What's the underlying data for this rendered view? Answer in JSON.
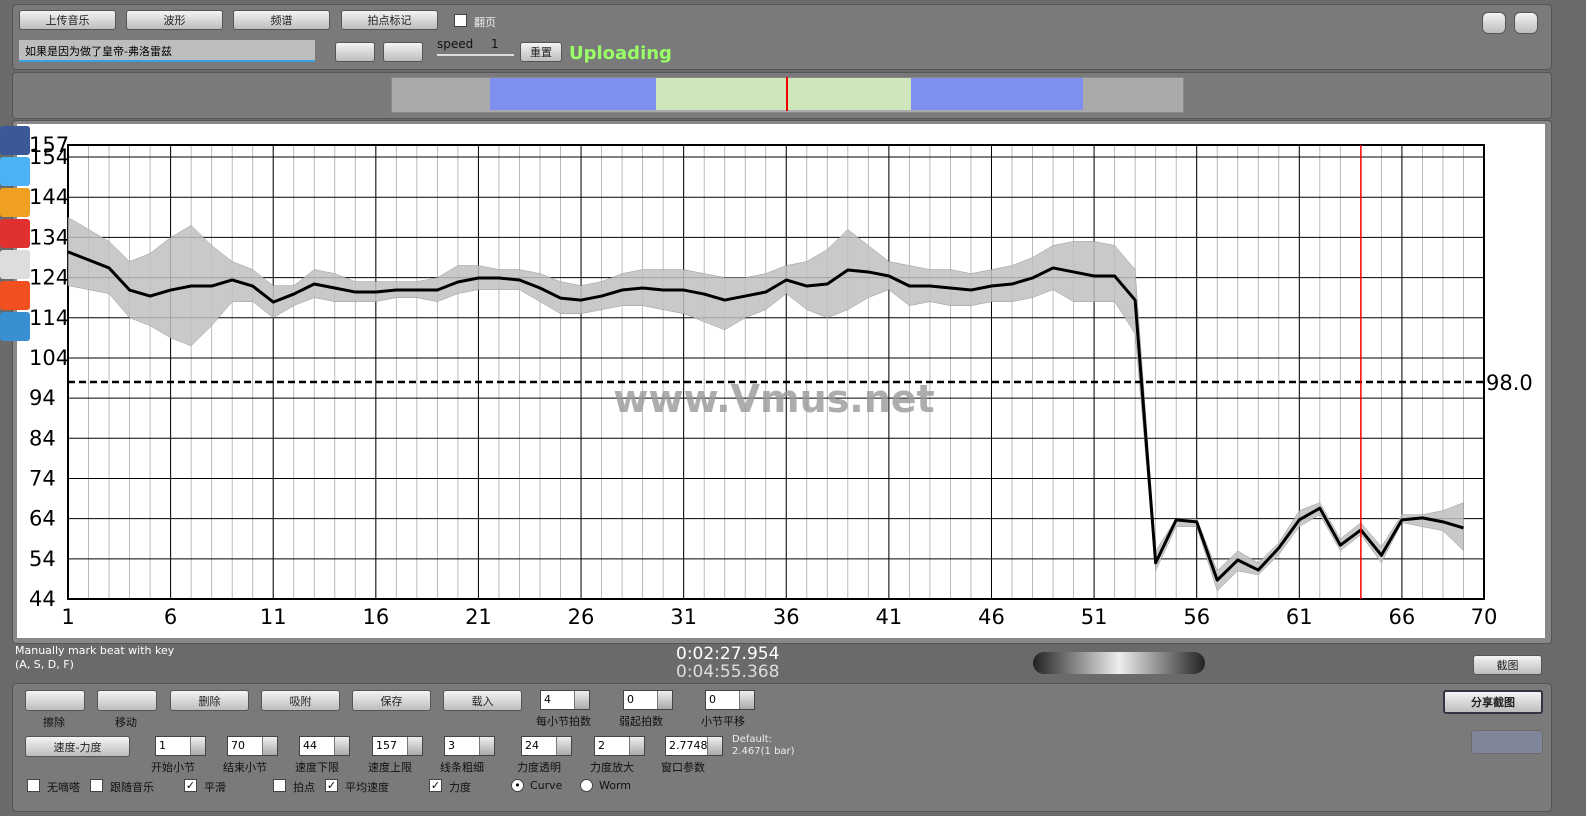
{
  "toolbar": {
    "buttons": [
      "上传音乐",
      "波形",
      "频谱",
      "拍点标记"
    ],
    "page_turn": {
      "label": "翻页",
      "checked": false
    },
    "song": "如果是因为做了皇帝-弗洛雷兹",
    "speed_label": "speed",
    "speed_value": "1",
    "reset": "重置",
    "status": "Uploading"
  },
  "chart_data": {
    "type": "line",
    "annotation": "www.Vmus.net",
    "x": [
      1,
      2,
      3,
      4,
      5,
      6,
      7,
      8,
      9,
      10,
      11,
      12,
      13,
      14,
      15,
      16,
      17,
      18,
      19,
      20,
      21,
      22,
      23,
      24,
      25,
      26,
      27,
      28,
      29,
      30,
      31,
      32,
      33,
      34,
      35,
      36,
      37,
      38,
      39,
      40,
      41,
      42,
      43,
      44,
      45,
      46,
      47,
      48,
      49,
      50,
      51,
      52,
      53,
      54,
      55,
      56,
      57,
      58,
      59,
      60,
      61,
      62,
      63,
      64,
      65,
      66,
      67,
      68,
      69
    ],
    "series": [
      {
        "color": "#000000",
        "band_color": "#c0c0c0",
        "values": [
          130.4,
          128.4,
          126.4,
          120.9,
          119.4,
          120.9,
          121.9,
          121.9,
          123.4,
          121.9,
          117.9,
          119.9,
          122.4,
          121.4,
          120.4,
          120.4,
          120.9,
          120.9,
          120.9,
          122.9,
          123.9,
          123.9,
          123.4,
          121.4,
          118.9,
          118.4,
          119.4,
          120.9,
          121.4,
          120.9,
          120.9,
          119.9,
          118.4,
          119.4,
          120.4,
          123.4,
          121.9,
          122.4,
          125.9,
          125.4,
          124.4,
          121.9,
          121.9,
          121.4,
          120.9,
          121.9,
          122.4,
          123.9,
          126.4,
          125.4,
          124.4,
          124.4,
          118.4,
          53,
          63.7,
          63.2,
          48.7,
          53.7,
          51.2,
          56.7,
          63.7,
          66.6,
          57.4,
          61.2,
          54.9,
          63.7,
          64.2,
          63.2,
          61.7
        ],
        "upper": [
          139,
          136,
          133,
          128,
          130,
          134,
          137,
          132,
          128,
          126,
          122,
          122,
          126,
          125,
          123,
          123,
          123,
          123,
          124,
          127,
          127,
          126,
          126,
          125,
          123,
          122,
          123,
          125,
          126,
          126,
          126,
          125,
          124,
          124,
          125,
          127,
          128,
          131,
          136,
          132,
          128,
          127,
          126,
          126,
          125,
          126,
          127,
          129,
          132,
          133,
          133,
          132,
          126,
          56,
          64,
          64,
          51,
          56,
          53,
          58,
          66,
          68,
          59,
          63,
          57,
          65,
          65,
          66,
          68
        ],
        "lower": [
          122,
          121,
          120,
          114,
          112,
          109,
          107,
          112,
          118,
          118,
          114,
          117,
          119,
          118,
          118,
          118,
          119,
          119,
          118,
          120,
          121,
          121,
          121,
          118,
          115,
          115,
          116,
          117,
          117,
          116,
          115,
          113,
          111,
          114,
          116,
          120,
          116,
          114,
          116,
          119,
          121,
          117,
          118,
          117,
          117,
          118,
          118,
          119,
          121,
          118,
          118,
          118,
          110,
          51,
          62,
          62,
          46,
          51,
          50,
          55,
          62,
          65,
          56,
          60,
          53,
          63,
          62,
          61,
          56
        ]
      }
    ],
    "xlim": [
      1,
      70
    ],
    "xticks": [
      1,
      6,
      11,
      16,
      21,
      26,
      31,
      36,
      41,
      46,
      51,
      56,
      61,
      66,
      70
    ],
    "ylim": [
      44,
      157
    ],
    "yticks": [
      44,
      54,
      64,
      74,
      84,
      94,
      104,
      114,
      124,
      134,
      144,
      154,
      157
    ],
    "reference_line": {
      "value": 98,
      "label": "98.0"
    },
    "cursor_x": 64,
    "cursor_color": "#ff0000",
    "grid": true
  },
  "status_bar": {
    "hint": [
      "Manually mark beat with key",
      "(A, S, D, F)"
    ],
    "time_current": "0:02:27.954",
    "time_total": "0:04:55.368",
    "screenshot": "截图"
  },
  "controls": {
    "tools": [
      "擦除",
      "移动"
    ],
    "buttons": [
      "删除",
      "吸附",
      "保存",
      "载入"
    ],
    "spinners_top": [
      {
        "value": "4",
        "label": "每小节拍数"
      },
      {
        "value": "0",
        "label": "弱起拍数"
      },
      {
        "value": "0",
        "label": "小节平移"
      }
    ],
    "share": "分享截图",
    "mode": "速度-力度",
    "spinners": [
      {
        "value": "1",
        "label": "开始小节"
      },
      {
        "value": "70",
        "label": "结束小节"
      },
      {
        "value": "44",
        "label": "速度下限"
      },
      {
        "value": "157",
        "label": "速度上限"
      },
      {
        "value": "3",
        "label": "线条粗细"
      },
      {
        "value": "24",
        "label": "力度透明"
      },
      {
        "value": "2",
        "label": "力度放大"
      },
      {
        "value": "2.7748",
        "label": "窗口参数"
      }
    ],
    "default_note": [
      "Default:",
      "2.467(1 bar)"
    ],
    "checkboxes": [
      {
        "label": "无嘀嗒",
        "checked": false
      },
      {
        "label": "跟随音乐",
        "checked": false
      },
      {
        "label": "平滑",
        "checked": true
      },
      {
        "label": "拍点",
        "checked": false
      },
      {
        "label": "平均速度",
        "checked": true
      },
      {
        "label": "力度",
        "checked": true
      }
    ],
    "radios": [
      {
        "label": "Curve",
        "selected": true
      },
      {
        "label": "Worm",
        "selected": false
      }
    ]
  }
}
